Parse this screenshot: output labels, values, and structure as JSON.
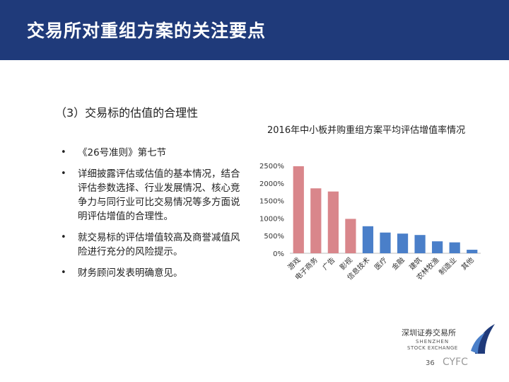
{
  "header": {
    "title": "交易所对重组方案的关注要点"
  },
  "section": {
    "title": "（3）交易标的估值的合理性"
  },
  "bullets": [
    {
      "marker": "•",
      "text": "《26号准则》第七节"
    },
    {
      "marker": "•",
      "text": "详细披露评估或估值的基本情况，结合评估参数选择、行业发展情况、核心竞争力与同行业可比交易情况等多方面说明评估增值的合理性。"
    },
    {
      "marker": "•",
      "text": "就交易标的评估增值较高及商誉减值风险进行充分的风险提示。"
    },
    {
      "marker": "•",
      "text": "财务顾问发表明确意见。"
    }
  ],
  "chart_data": {
    "type": "bar",
    "title": "2016年中小板并购重组方案平均评估增值率情况",
    "categories": [
      "游戏",
      "电子商务",
      "广告",
      "影视",
      "信息技术",
      "医疗",
      "金融",
      "建筑",
      "农林牧渔",
      "制造业",
      "其他"
    ],
    "values": [
      2480,
      1850,
      1760,
      980,
      770,
      590,
      560,
      520,
      340,
      310,
      100
    ],
    "bar_colors": [
      "#d9868b",
      "#d9868b",
      "#d9868b",
      "#d9868b",
      "#4a7fc9",
      "#4a7fc9",
      "#4a7fc9",
      "#4a7fc9",
      "#4a7fc9",
      "#4a7fc9",
      "#4a7fc9"
    ],
    "yticks": [
      "0%",
      "500%",
      "1000%",
      "1500%",
      "2000%",
      "2500%"
    ],
    "ylim": [
      0,
      2500
    ],
    "xlabel": "",
    "ylabel": "",
    "grid": false
  },
  "footer": {
    "logo_cn": "深圳证券交易所",
    "logo_en1": "SHENZHEN",
    "logo_en2": "STOCK EXCHANGE",
    "page_number": "36",
    "watermark": "CYFC"
  },
  "colors": {
    "header": "#1f3a7a",
    "accent_red": "#d9868b",
    "accent_blue": "#4a7fc9"
  }
}
